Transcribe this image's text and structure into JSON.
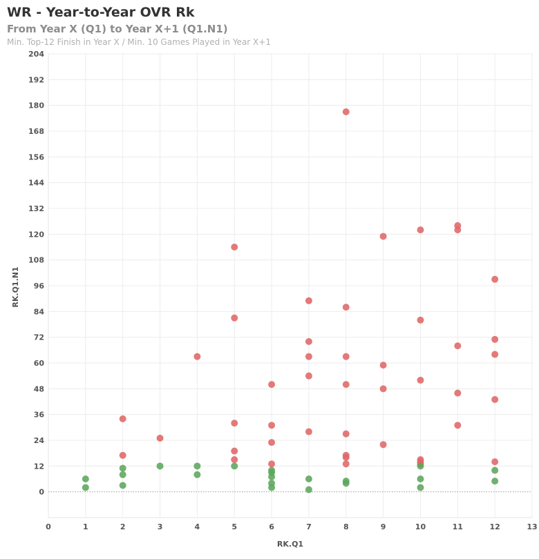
{
  "header": {
    "title": "WR - Year-to-Year OVR Rk",
    "subtitle": "From Year X (Q1) to Year X+1 (Q1.N1)",
    "note": "Min. Top-12 Finish in Year X / Min. 10 Games Played in Year X+1"
  },
  "chart_data": {
    "type": "scatter",
    "title": "WR - Year-to-Year OVR Rk",
    "subtitle": "From Year X (Q1) to Year X+1 (Q1.N1)",
    "xlabel": "RK.Q1",
    "ylabel": "RK.Q1.N1",
    "xlim": [
      0,
      13
    ],
    "ylim": [
      -12,
      204
    ],
    "x_ticks": [
      0,
      1,
      2,
      3,
      4,
      5,
      6,
      7,
      8,
      9,
      10,
      11,
      12,
      13
    ],
    "y_ticks": [
      0,
      12,
      24,
      36,
      48,
      60,
      72,
      84,
      96,
      108,
      120,
      132,
      144,
      156,
      168,
      180,
      192,
      204
    ],
    "grid": true,
    "colors": {
      "improved": "#5ca65c",
      "declined": "#e06666"
    },
    "points": [
      {
        "x": 1,
        "y": 6,
        "group": "improved"
      },
      {
        "x": 1,
        "y": 2,
        "group": "improved"
      },
      {
        "x": 2,
        "y": 34,
        "group": "declined"
      },
      {
        "x": 2,
        "y": 17,
        "group": "declined"
      },
      {
        "x": 2,
        "y": 11,
        "group": "improved"
      },
      {
        "x": 2,
        "y": 8,
        "group": "improved"
      },
      {
        "x": 2,
        "y": 3,
        "group": "improved"
      },
      {
        "x": 3,
        "y": 25,
        "group": "declined"
      },
      {
        "x": 3,
        "y": 12,
        "group": "improved"
      },
      {
        "x": 4,
        "y": 63,
        "group": "declined"
      },
      {
        "x": 4,
        "y": 12,
        "group": "improved"
      },
      {
        "x": 4,
        "y": 8,
        "group": "improved"
      },
      {
        "x": 5,
        "y": 114,
        "group": "declined"
      },
      {
        "x": 5,
        "y": 81,
        "group": "declined"
      },
      {
        "x": 5,
        "y": 32,
        "group": "declined"
      },
      {
        "x": 5,
        "y": 19,
        "group": "declined"
      },
      {
        "x": 5,
        "y": 15,
        "group": "declined"
      },
      {
        "x": 5,
        "y": 12,
        "group": "improved"
      },
      {
        "x": 6,
        "y": 50,
        "group": "declined"
      },
      {
        "x": 6,
        "y": 31,
        "group": "declined"
      },
      {
        "x": 6,
        "y": 23,
        "group": "declined"
      },
      {
        "x": 6,
        "y": 13,
        "group": "declined"
      },
      {
        "x": 6,
        "y": 10,
        "group": "improved"
      },
      {
        "x": 6,
        "y": 9,
        "group": "improved"
      },
      {
        "x": 6,
        "y": 7,
        "group": "improved"
      },
      {
        "x": 6,
        "y": 4,
        "group": "improved"
      },
      {
        "x": 6,
        "y": 2,
        "group": "improved"
      },
      {
        "x": 7,
        "y": 89,
        "group": "declined"
      },
      {
        "x": 7,
        "y": 70,
        "group": "declined"
      },
      {
        "x": 7,
        "y": 63,
        "group": "declined"
      },
      {
        "x": 7,
        "y": 54,
        "group": "declined"
      },
      {
        "x": 7,
        "y": 28,
        "group": "declined"
      },
      {
        "x": 7,
        "y": 6,
        "group": "improved"
      },
      {
        "x": 7,
        "y": 1,
        "group": "improved"
      },
      {
        "x": 8,
        "y": 177,
        "group": "declined"
      },
      {
        "x": 8,
        "y": 86,
        "group": "declined"
      },
      {
        "x": 8,
        "y": 63,
        "group": "declined"
      },
      {
        "x": 8,
        "y": 50,
        "group": "declined"
      },
      {
        "x": 8,
        "y": 27,
        "group": "declined"
      },
      {
        "x": 8,
        "y": 17,
        "group": "declined"
      },
      {
        "x": 8,
        "y": 16,
        "group": "declined"
      },
      {
        "x": 8,
        "y": 13,
        "group": "declined"
      },
      {
        "x": 8,
        "y": 5,
        "group": "improved"
      },
      {
        "x": 8,
        "y": 4,
        "group": "improved"
      },
      {
        "x": 9,
        "y": 119,
        "group": "declined"
      },
      {
        "x": 9,
        "y": 59,
        "group": "declined"
      },
      {
        "x": 9,
        "y": 48,
        "group": "declined"
      },
      {
        "x": 9,
        "y": 22,
        "group": "declined"
      },
      {
        "x": 10,
        "y": 122,
        "group": "declined"
      },
      {
        "x": 10,
        "y": 80,
        "group": "declined"
      },
      {
        "x": 10,
        "y": 52,
        "group": "declined"
      },
      {
        "x": 10,
        "y": 15,
        "group": "declined"
      },
      {
        "x": 10,
        "y": 14,
        "group": "declined"
      },
      {
        "x": 10,
        "y": 13,
        "group": "declined"
      },
      {
        "x": 10,
        "y": 12,
        "group": "improved"
      },
      {
        "x": 10,
        "y": 6,
        "group": "improved"
      },
      {
        "x": 10,
        "y": 2,
        "group": "improved"
      },
      {
        "x": 11,
        "y": 124,
        "group": "declined"
      },
      {
        "x": 11,
        "y": 122,
        "group": "declined"
      },
      {
        "x": 11,
        "y": 68,
        "group": "declined"
      },
      {
        "x": 11,
        "y": 46,
        "group": "declined"
      },
      {
        "x": 11,
        "y": 31,
        "group": "declined"
      },
      {
        "x": 12,
        "y": 99,
        "group": "declined"
      },
      {
        "x": 12,
        "y": 71,
        "group": "declined"
      },
      {
        "x": 12,
        "y": 64,
        "group": "declined"
      },
      {
        "x": 12,
        "y": 43,
        "group": "declined"
      },
      {
        "x": 12,
        "y": 14,
        "group": "declined"
      },
      {
        "x": 12,
        "y": 10,
        "group": "improved"
      },
      {
        "x": 12,
        "y": 5,
        "group": "improved"
      }
    ]
  }
}
